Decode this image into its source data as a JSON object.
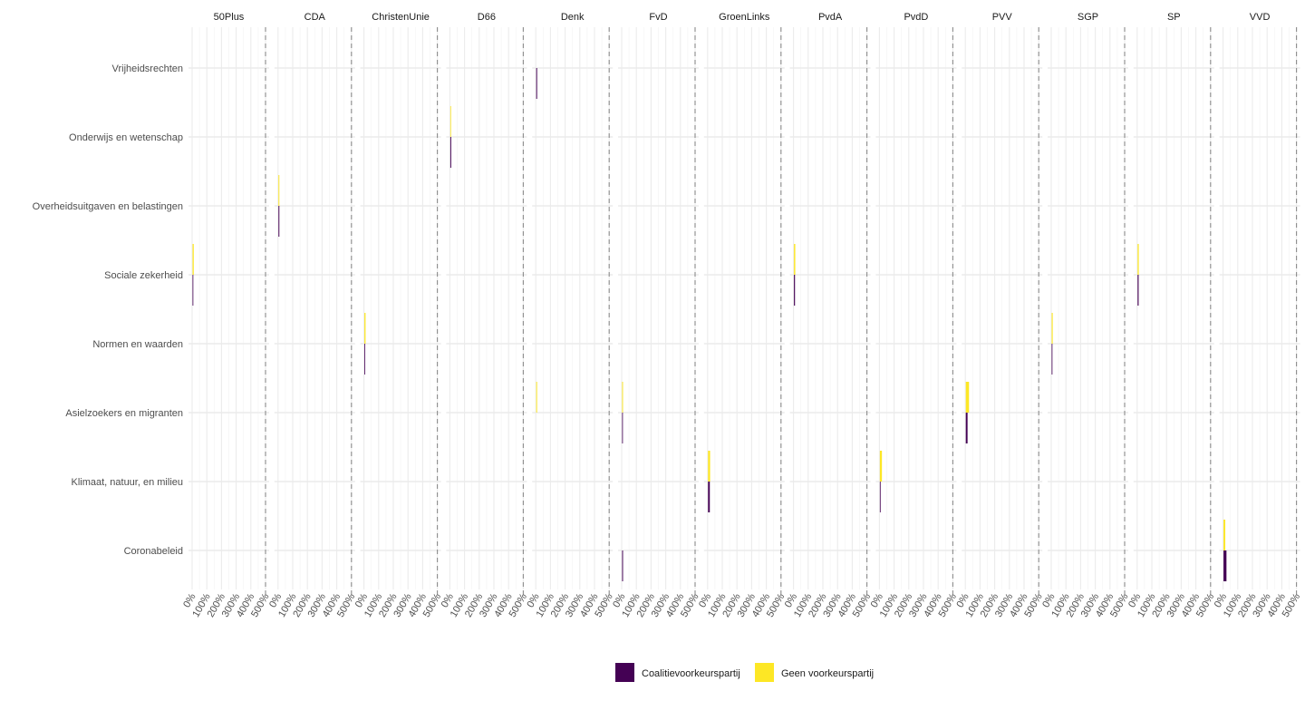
{
  "chart_data": {
    "type": "bar",
    "orientation": "horizontal",
    "facets": [
      "50Plus",
      "CDA",
      "ChristenUnie",
      "D66",
      "Denk",
      "FvD",
      "GroenLinks",
      "PvdA",
      "PvdD",
      "PVV",
      "SGP",
      "SP",
      "VVD"
    ],
    "categories": [
      "Vrijheidsrechten",
      "Onderwijs en wetenschap",
      "Overheidsuitgaven en belastingen",
      "Sociale zekerheid",
      "Normen en waarden",
      "Asielzoekers en migranten",
      "Klimaat, natuur, en milieu",
      "Coronabeleid"
    ],
    "x_ticks": [
      "0%",
      "100%",
      "200%",
      "300%",
      "400%",
      "500%"
    ],
    "xlim": [
      0,
      500
    ],
    "reference_line": 500,
    "grid": true,
    "legend_position": "bottom",
    "series": [
      {
        "name": "Coalitievoorkeurspartij",
        "color": "#440154",
        "values": [
          [
            0,
            0,
            0,
            4,
            0,
            0,
            0,
            0
          ],
          [
            0,
            0,
            6,
            0,
            0,
            0,
            0,
            0
          ],
          [
            0,
            0,
            0,
            0,
            5,
            0,
            0,
            0
          ],
          [
            0,
            6,
            0,
            0,
            0,
            0,
            0,
            0
          ],
          [
            6,
            0,
            0,
            0,
            0,
            0,
            0,
            0
          ],
          [
            0,
            0,
            0,
            0,
            0,
            5,
            0,
            6
          ],
          [
            0,
            0,
            0,
            0,
            0,
            0,
            12,
            0
          ],
          [
            0,
            0,
            0,
            7,
            0,
            0,
            0,
            0
          ],
          [
            0,
            0,
            0,
            0,
            0,
            0,
            5,
            0
          ],
          [
            0,
            0,
            0,
            0,
            0,
            12,
            0,
            0
          ],
          [
            0,
            0,
            0,
            0,
            3,
            0,
            0,
            0
          ],
          [
            0,
            0,
            0,
            7,
            0,
            0,
            0,
            0
          ],
          [
            0,
            0,
            0,
            0,
            0,
            0,
            0,
            20
          ]
        ]
      },
      {
        "name": "Geen voorkeurspartij",
        "color": "#fde725",
        "values": [
          [
            0,
            0,
            0,
            8,
            0,
            0,
            0,
            0
          ],
          [
            0,
            0,
            6,
            0,
            0,
            0,
            0,
            0
          ],
          [
            0,
            0,
            0,
            0,
            8,
            0,
            0,
            0
          ],
          [
            0,
            3,
            0,
            0,
            0,
            0,
            0,
            0
          ],
          [
            0,
            0,
            0,
            0,
            0,
            6,
            0,
            0
          ],
          [
            0,
            0,
            0,
            0,
            0,
            6,
            0,
            0
          ],
          [
            0,
            0,
            0,
            0,
            0,
            0,
            14,
            0
          ],
          [
            0,
            0,
            0,
            9,
            0,
            0,
            0,
            0
          ],
          [
            0,
            0,
            0,
            0,
            0,
            0,
            14,
            0
          ],
          [
            0,
            0,
            0,
            0,
            0,
            22,
            0,
            0
          ],
          [
            0,
            0,
            0,
            0,
            7,
            0,
            0,
            0
          ],
          [
            0,
            0,
            0,
            8,
            0,
            0,
            0,
            0
          ],
          [
            0,
            0,
            0,
            0,
            0,
            0,
            0,
            12
          ]
        ]
      }
    ]
  }
}
